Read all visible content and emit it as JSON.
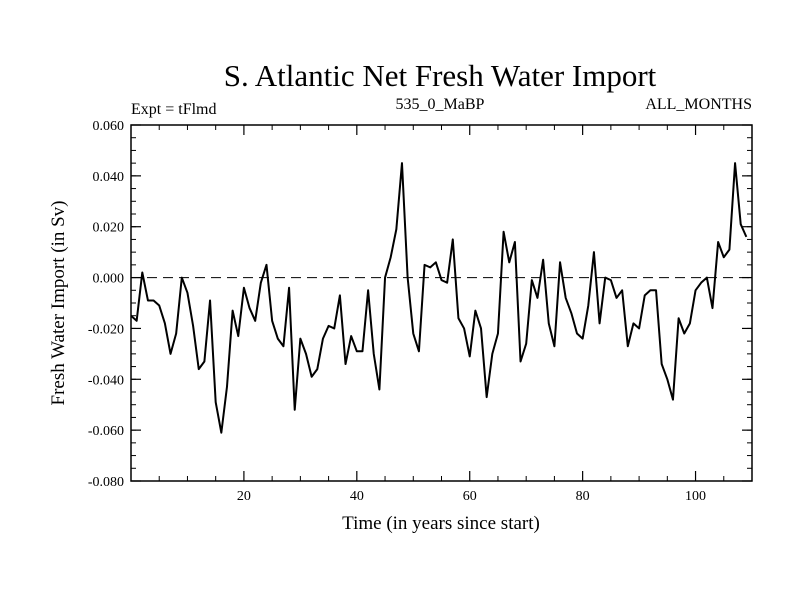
{
  "chart_data": {
    "type": "line",
    "title": "S. Atlantic Net Fresh Water Import",
    "subtitle_left": "Expt = tFlmd",
    "subtitle_center": "535_0_MaBP",
    "subtitle_right": "ALL_MONTHS",
    "xlabel": "Time (in years since start)",
    "ylabel": "Fresh Water Import (in Sv)",
    "xlim": [
      0,
      110
    ],
    "ylim": [
      -0.08,
      0.06
    ],
    "xticks": [
      20,
      40,
      60,
      80,
      100
    ],
    "xtick_labels": [
      "20",
      "40",
      "60",
      "80",
      "100"
    ],
    "yticks": [
      0.06,
      0.04,
      0.02,
      0.0,
      -0.02,
      -0.04,
      -0.06,
      -0.08
    ],
    "ytick_labels": [
      "0.060",
      "0.040",
      "0.020",
      "0.000",
      "-0.020",
      "-0.040",
      "-0.060",
      "-0.080"
    ],
    "reference_line": 0.0,
    "series": [
      {
        "name": "Net Fresh Water Import",
        "x_start": 0,
        "x_step": 1,
        "values": [
          -0.015,
          -0.017,
          0.002,
          -0.009,
          -0.009,
          -0.011,
          -0.018,
          -0.03,
          -0.022,
          0.0,
          -0.006,
          -0.019,
          -0.036,
          -0.033,
          -0.009,
          -0.049,
          -0.061,
          -0.043,
          -0.013,
          -0.023,
          -0.004,
          -0.012,
          -0.017,
          -0.002,
          0.005,
          -0.017,
          -0.024,
          -0.027,
          -0.004,
          -0.052,
          -0.024,
          -0.03,
          -0.039,
          -0.036,
          -0.024,
          -0.019,
          -0.02,
          -0.007,
          -0.034,
          -0.023,
          -0.029,
          -0.029,
          -0.005,
          -0.03,
          -0.044,
          0.0,
          0.008,
          0.019,
          0.045,
          0.0,
          -0.022,
          -0.029,
          0.005,
          0.004,
          0.006,
          -0.001,
          -0.002,
          0.015,
          -0.016,
          -0.02,
          -0.031,
          -0.013,
          -0.02,
          -0.047,
          -0.03,
          -0.022,
          0.018,
          0.006,
          0.014,
          -0.033,
          -0.026,
          -0.001,
          -0.008,
          0.007,
          -0.018,
          -0.027,
          0.006,
          -0.008,
          -0.014,
          -0.022,
          -0.024,
          -0.011,
          0.01,
          -0.018,
          0.0,
          -0.001,
          -0.008,
          -0.005,
          -0.027,
          -0.018,
          -0.02,
          -0.007,
          -0.005,
          -0.005,
          -0.034,
          -0.04,
          -0.048,
          -0.016,
          -0.022,
          -0.018,
          -0.005,
          -0.002,
          0.0,
          -0.012,
          0.014,
          0.008,
          0.011,
          0.045,
          0.021,
          0.016
        ]
      }
    ]
  }
}
